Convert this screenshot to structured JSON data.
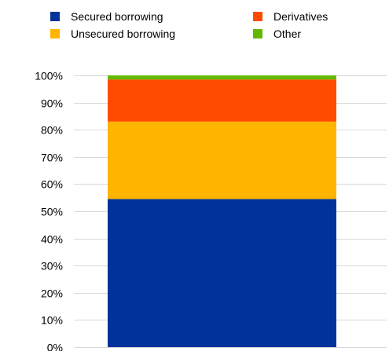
{
  "chart_data": {
    "type": "bar",
    "stacked": true,
    "categories": [
      ""
    ],
    "series": [
      {
        "name": "Secured borrowing",
        "values": [
          54.5
        ],
        "color": "#003299"
      },
      {
        "name": "Unsecured borrowing",
        "values": [
          28.5
        ],
        "color": "#FFB400"
      },
      {
        "name": "Derivatives",
        "values": [
          15.5
        ],
        "color": "#FF4B00"
      },
      {
        "name": "Other",
        "values": [
          1.5
        ],
        "color": "#65B800"
      }
    ],
    "ylim": [
      0,
      100
    ],
    "yticks": [
      "0%",
      "10%",
      "20%",
      "30%",
      "40%",
      "50%",
      "60%",
      "70%",
      "80%",
      "90%",
      "100%"
    ],
    "grid": true,
    "legend_position": "top",
    "title": "",
    "xlabel": "",
    "ylabel": ""
  }
}
